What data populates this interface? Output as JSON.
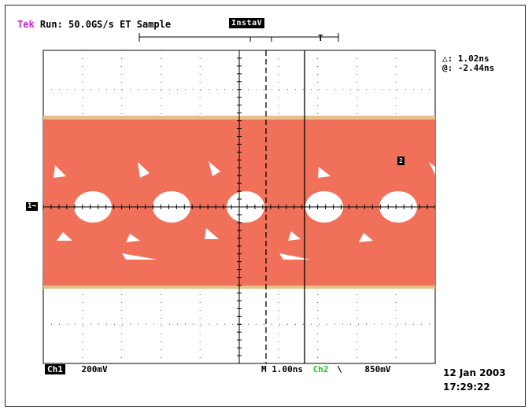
{
  "header": {
    "brand": "Tek",
    "status": "Run: 50.0GS/s ET Sample",
    "mode_badge": "InstaV"
  },
  "trigger_position_marker": "T",
  "cursor_readout": {
    "delta": "△: 1.02ns",
    "at": "@: -2.44ns"
  },
  "ground_marker": "1→",
  "cursor_marker": "2",
  "footer": {
    "channel": "Ch1",
    "volts_per_div": "200mV",
    "timebase": "M 1.00ns",
    "trigger_source": "Ch2",
    "trigger_slope": "\\",
    "trigger_level": "850mV"
  },
  "datetime": {
    "date": "12 Jan 2003",
    "time": "17:29:22"
  },
  "colors": {
    "trace": "#f0705a",
    "trace_edge": "#e6c089",
    "brand": "#d020d0",
    "trigger_source": "#22c522"
  },
  "display": {
    "horizontal_divisions": 10,
    "vertical_divisions": 8,
    "signal_type": "eye diagram"
  }
}
